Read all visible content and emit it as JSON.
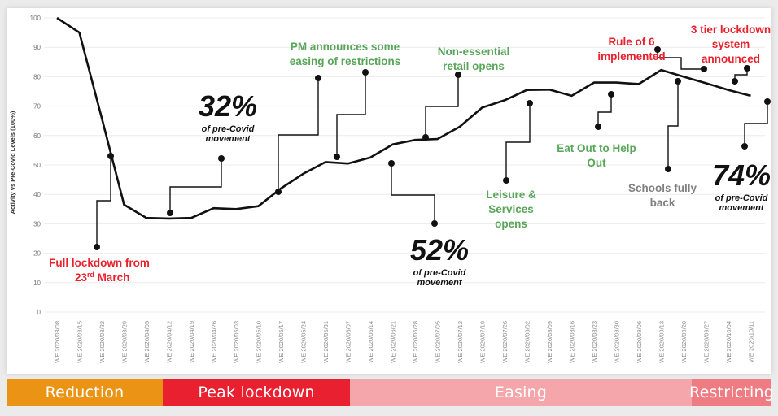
{
  "chart_data": {
    "type": "line",
    "ylabel": "Activity vs Pre-Covid Levels (100%)",
    "ylim": [
      0,
      100
    ],
    "yticks": [
      0,
      10,
      20,
      30,
      40,
      50,
      60,
      70,
      80,
      90,
      100
    ],
    "categories": [
      "WE 2020/03/08",
      "WE 2020/03/15",
      "WE 2020/03/22",
      "WE 2020/03/29",
      "WE 2020/04/05",
      "WE 2020/04/12",
      "WE 2020/04/19",
      "WE 2020/04/26",
      "WE 2020/05/03",
      "WE 2020/05/10",
      "WE 2020/05/17",
      "WE 2020/05/24",
      "WE 2020/05/31",
      "WE 2020/06/07",
      "WE 2020/06/14",
      "WE 2020/06/21",
      "WE 2020/06/28",
      "WE 2020/07/05",
      "WE 2020/07/12",
      "WE 2020/07/19",
      "WE 2020/07/26",
      "WE 2020/08/02",
      "WE 2020/08/09",
      "WE 2020/08/16",
      "WE 2020/08/23",
      "WE 2020/08/30",
      "WE 2020/09/06",
      "WE 2020/09/13",
      "WE 2020/09/20",
      "WE 2020/09/27",
      "WE 2020/10/04",
      "WE 2020/10/11"
    ],
    "values": [
      100,
      95,
      66,
      36.5,
      32,
      31.8,
      32,
      35.3,
      35,
      36,
      42,
      47,
      51,
      50.5,
      52.5,
      57,
      58.5,
      58.8,
      63,
      69.5,
      72,
      75.5,
      75.6,
      73.5,
      78,
      78,
      77.5,
      82.3,
      80,
      77.8,
      75.5,
      73.5
    ]
  },
  "annotations": [
    {
      "id": "full-lockdown",
      "lines": [
        "Full lockdown from",
        "23"
      ],
      "sup": "rd",
      "tail": " March",
      "color": "#e8212d"
    },
    {
      "id": "pct-32",
      "big": "32%",
      "small_lines": [
        "of pre-Covid",
        "movement"
      ]
    },
    {
      "id": "pm-announces",
      "lines": [
        "PM announces some",
        "easing of restrictions"
      ],
      "color": "#59a559"
    },
    {
      "id": "pct-52",
      "big": "52%",
      "small_lines": [
        "of pre-Covid",
        "movement"
      ]
    },
    {
      "id": "non-essential",
      "lines": [
        "Non-essential",
        "retail opens"
      ],
      "color": "#59a559"
    },
    {
      "id": "leisure",
      "lines": [
        "Leisure &",
        "Services",
        "opens"
      ],
      "color": "#59a559"
    },
    {
      "id": "eat-out",
      "lines": [
        "Eat Out to Help",
        "Out"
      ],
      "color": "#59a559"
    },
    {
      "id": "rule-of-6",
      "lines": [
        "Rule of 6",
        "implemented"
      ],
      "color": "#e8212d"
    },
    {
      "id": "schools",
      "lines": [
        "Schools fully",
        "back"
      ],
      "color": "#808080"
    },
    {
      "id": "three-tier",
      "lines": [
        "3 tier lockdown",
        "system",
        "announced"
      ],
      "color": "#e8212d"
    },
    {
      "id": "pct-74",
      "big": "74%",
      "small_lines": [
        "of pre-Covid",
        "movement"
      ]
    }
  ],
  "phases": [
    {
      "label": "Reduction",
      "color": "#eb9315"
    },
    {
      "label": "Peak lockdown",
      "color": "#e8202f"
    },
    {
      "label": "Easing",
      "color": "#f4a6aa"
    },
    {
      "label": "Restricting",
      "color": "#ef7c83"
    }
  ]
}
